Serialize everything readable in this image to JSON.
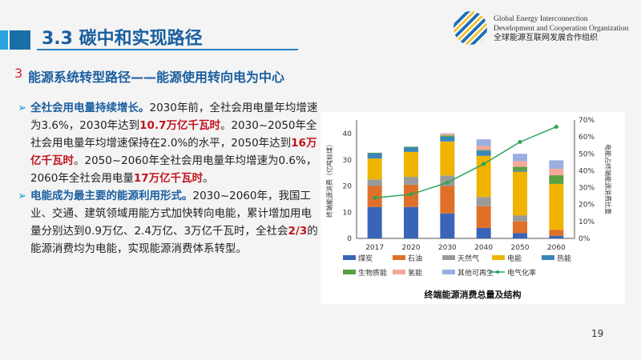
{
  "header": {
    "title": "3.3 碳中和实现路径",
    "org_en_1": "Global Energy Interconnection",
    "org_en_2": "Development and Cooperation Organization",
    "org_cn": "全球能源互联网发展合作组织"
  },
  "section": {
    "number": "3",
    "title": "能源系统转型路径——能源使用转向电为中心"
  },
  "paragraphs": [
    {
      "lead": "全社会用电量持续增长。",
      "t1": "2030年前，全社会用电量年均增速为3.6%，2030年达到",
      "r1": "10.7万亿千瓦时",
      "t2": "。2030~2050年全社会用电量年均增速保持在2.0%的水平，2050年达到",
      "r2": "16万亿千瓦时",
      "t3": "。2050~2060年全社会用电量年均增速为0.6%，2060年全社会用电量",
      "r3": "17万亿千瓦时",
      "t4": "。"
    },
    {
      "lead": "电能成为最主要的能源利用形式。",
      "t1": "2030~2060年，我国工业、交通、建筑领域用能方式加快转向电能，累计增加用电量分别达到0.9万亿、2.4万亿、3万亿千瓦时，全社会",
      "r1": "2/3",
      "t2": "的能源消费均为电能，实现能源消费体系转型。"
    }
  ],
  "page_number": "19",
  "chart_data": {
    "type": "bar",
    "stacked": true,
    "title": "终端能源消费总量及结构",
    "ylabel": "终端能源消费（亿吨标煤）",
    "y2label": "电能占终端能源消费比重",
    "ylim": [
      0,
      45
    ],
    "y2lim": [
      0,
      70
    ],
    "yticks": [
      "0",
      "10",
      "20",
      "30",
      "40"
    ],
    "y2ticks": [
      "0%",
      "10%",
      "20%",
      "30%",
      "40%",
      "50%",
      "60%",
      "70%"
    ],
    "categories": [
      "2017",
      "2020",
      "2030",
      "2040",
      "2050",
      "2060"
    ],
    "series": [
      {
        "name": "煤炭",
        "color": "#3a64b8",
        "values": [
          12,
          12,
          9.5,
          4,
          2,
          1
        ]
      },
      {
        "name": "石油",
        "color": "#e07028",
        "values": [
          8,
          8.5,
          10.5,
          8.3,
          4.5,
          2.3
        ]
      },
      {
        "name": "天然气",
        "color": "#9a9a9a",
        "values": [
          2.5,
          3,
          4,
          3.5,
          2.3,
          0
        ]
      },
      {
        "name": "电能",
        "color": "#f0b400",
        "values": [
          8,
          9.5,
          13,
          15.7,
          16.7,
          17.5
        ]
      },
      {
        "name": "热能",
        "color": "#3a86b8",
        "values": [
          2,
          1.8,
          1.8,
          2,
          0.5,
          0
        ]
      },
      {
        "name": "生物质能",
        "color": "#5aa040",
        "values": [
          0.2,
          0.2,
          0.5,
          0.3,
          1.3,
          3.3
        ]
      },
      {
        "name": "氢能",
        "color": "#f4a898",
        "values": [
          0,
          0,
          0.5,
          1.5,
          2.2,
          2.5
        ]
      },
      {
        "name": "其他可再生",
        "color": "#9aaee0",
        "values": [
          0,
          0,
          0.3,
          2.5,
          2.8,
          3.2
        ]
      }
    ],
    "line": {
      "name": "电气化率",
      "color": "#2aa55a",
      "values": [
        24,
        26,
        33,
        44,
        57,
        66
      ],
      "unit": "%"
    }
  }
}
